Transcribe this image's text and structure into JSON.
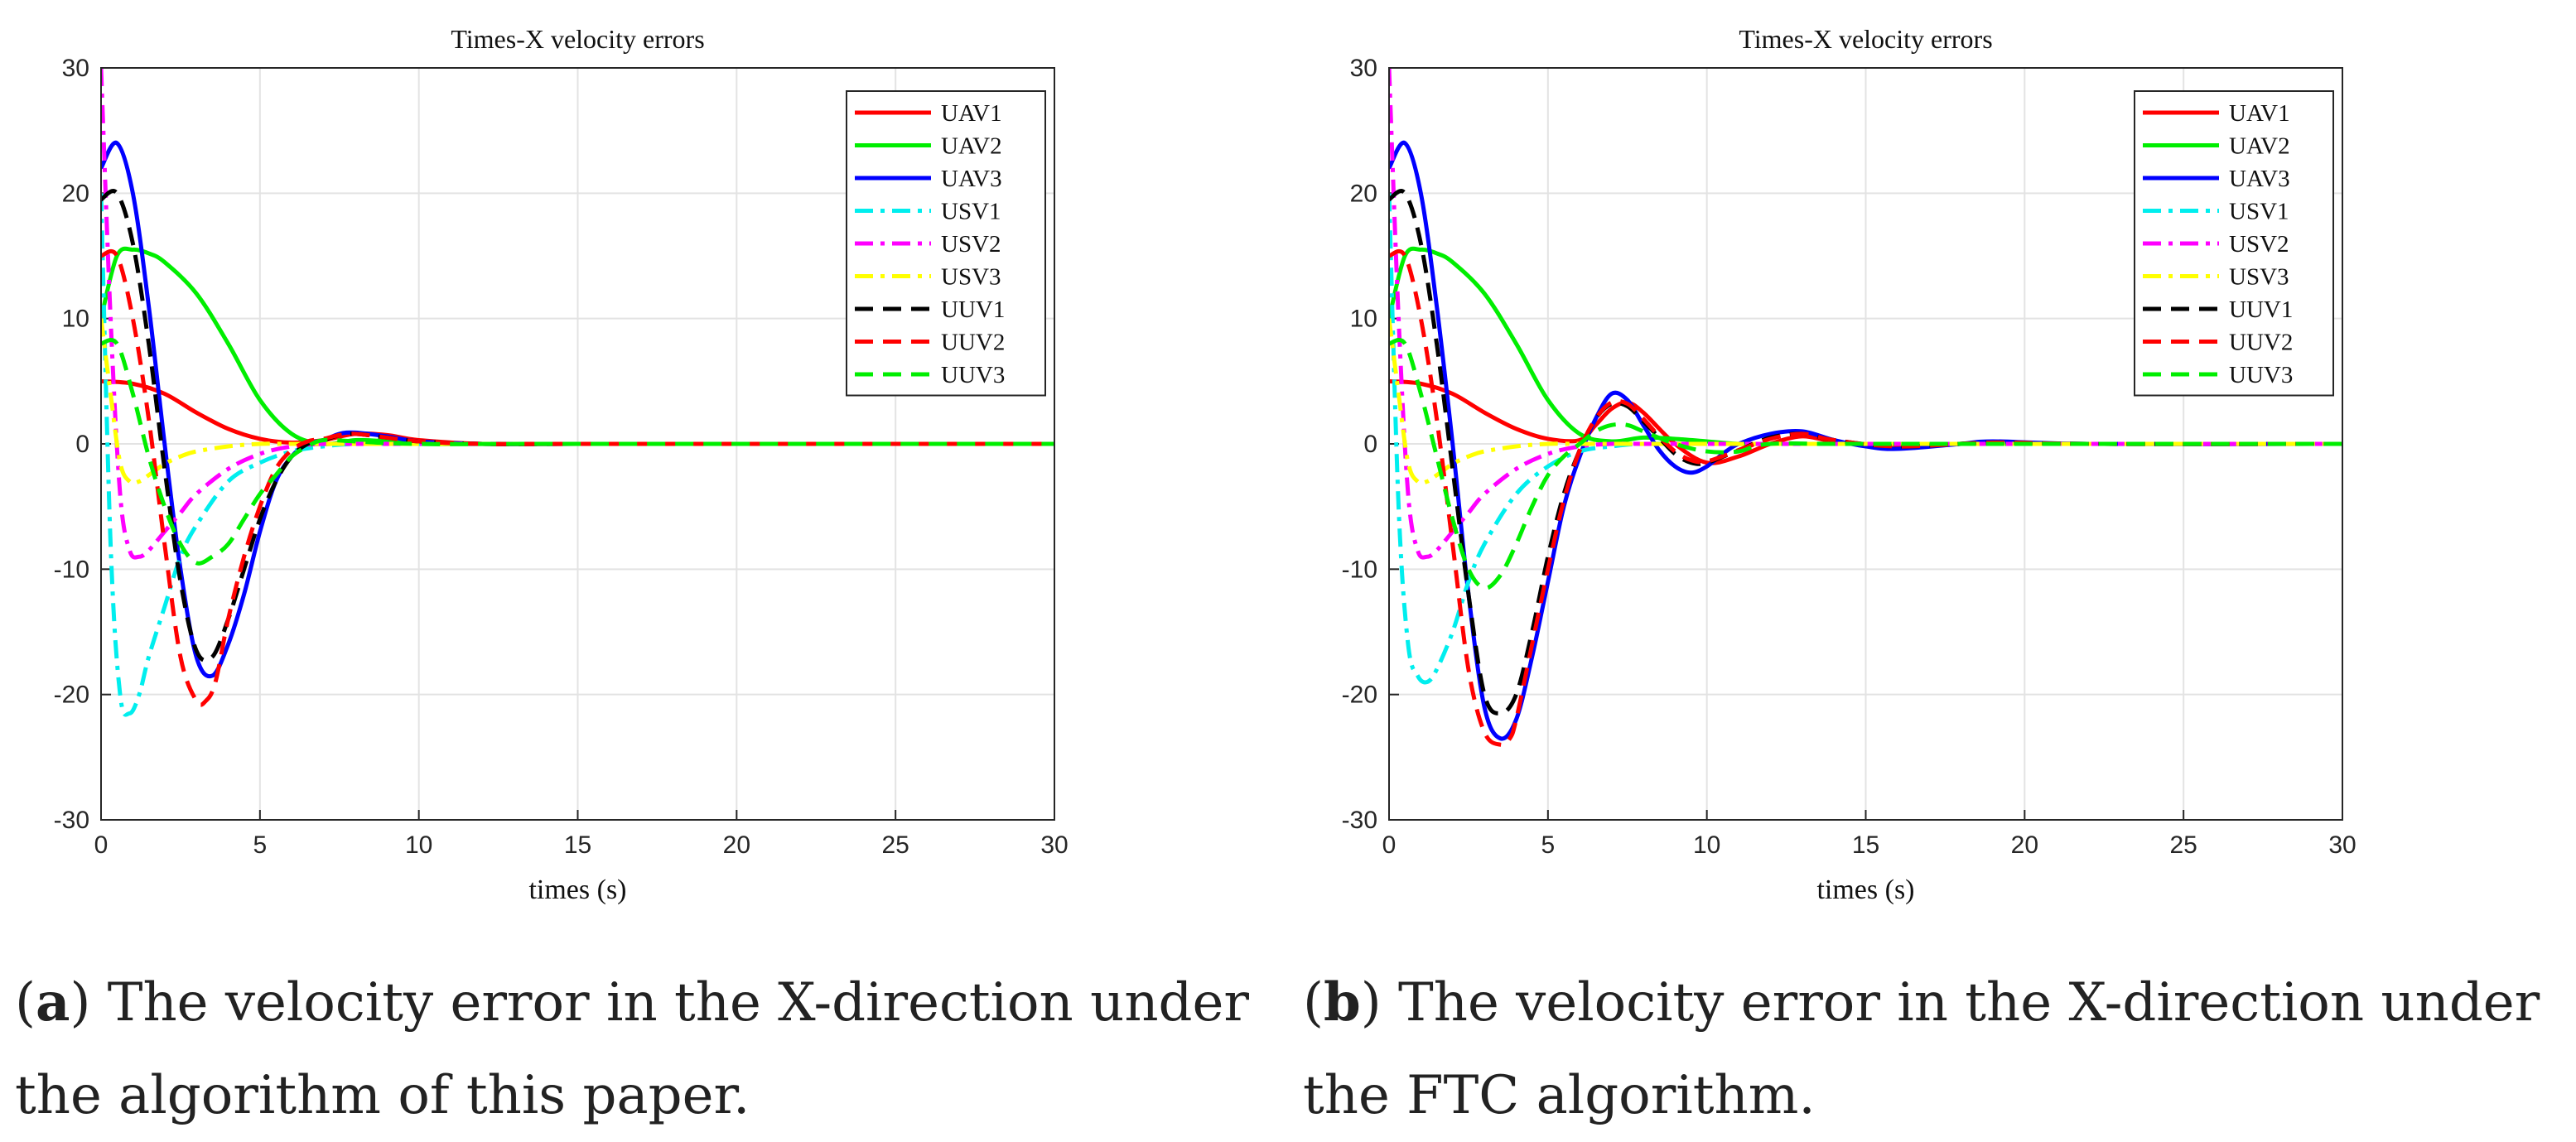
{
  "chart_data": [
    {
      "type": "line",
      "title": "Times-X velocity errors",
      "xlabel": "times (s)",
      "ylabel": "",
      "xlim": [
        0,
        30
      ],
      "ylim": [
        -30,
        30
      ],
      "xticks": [
        "0",
        "5",
        "10",
        "15",
        "20",
        "25",
        "30"
      ],
      "yticks": [
        "30",
        "20",
        "10",
        "0",
        "-10",
        "-20",
        "-30"
      ],
      "grid": true,
      "legend_position": "top-right",
      "caption": {
        "letter": "a",
        "text": "The velocity error in the X-direction under the algorithm of this paper."
      },
      "series": [
        {
          "name": "UAV1",
          "color": "#ff0000",
          "style": "solid",
          "x": [
            0,
            1,
            2,
            3,
            4,
            5,
            6,
            7,
            8,
            9,
            10,
            12,
            15,
            20,
            30
          ],
          "y": [
            5,
            4.8,
            4,
            2.5,
            1.2,
            0.4,
            0.1,
            0.3,
            0.8,
            0.7,
            0.3,
            0,
            0,
            0,
            0
          ]
        },
        {
          "name": "UAV2",
          "color": "#00ee00",
          "style": "solid",
          "x": [
            0,
            0.5,
            1,
            1.5,
            2,
            3,
            4,
            5,
            6,
            7,
            8,
            9,
            10,
            12,
            15,
            20,
            30
          ],
          "y": [
            10,
            15,
            15.5,
            15.2,
            14.5,
            12,
            8,
            3.5,
            0.8,
            0,
            0.3,
            0.2,
            0,
            0,
            0,
            0,
            0
          ]
        },
        {
          "name": "UAV3",
          "color": "#0000ff",
          "style": "solid",
          "x": [
            0,
            0.5,
            1,
            1.5,
            2,
            2.5,
            3,
            3.5,
            4,
            4.5,
            5,
            5.5,
            6,
            6.5,
            7,
            7.5,
            8,
            9,
            10,
            12,
            15,
            20,
            30
          ],
          "y": [
            22,
            24,
            20,
            11,
            0,
            -10,
            -17,
            -18.5,
            -16,
            -12,
            -7,
            -3,
            -1,
            0,
            0.3,
            0.8,
            0.9,
            0.6,
            0.2,
            0,
            0,
            0,
            0
          ]
        },
        {
          "name": "USV1",
          "color": "#00eeee",
          "style": "dashdot",
          "x": [
            0,
            0.3,
            0.6,
            0.9,
            1.2,
            1.5,
            2,
            2.5,
            3,
            4,
            5,
            6,
            7,
            8,
            10,
            15,
            30
          ],
          "y": [
            20,
            -8,
            -20,
            -21.5,
            -20,
            -17,
            -13,
            -9,
            -6.5,
            -3,
            -1.5,
            -0.6,
            -0.2,
            0,
            0,
            0,
            0
          ]
        },
        {
          "name": "USV2",
          "color": "#ff00ff",
          "style": "dashdot",
          "x": [
            0,
            0.3,
            0.6,
            0.9,
            1.2,
            1.5,
            2,
            2.5,
            3,
            4,
            5,
            6,
            7,
            8,
            10,
            15,
            30
          ],
          "y": [
            30,
            10,
            -4,
            -8.5,
            -9,
            -8.5,
            -7,
            -5.5,
            -4,
            -2,
            -0.8,
            -0.2,
            0,
            0,
            0,
            0,
            0
          ]
        },
        {
          "name": "USV3",
          "color": "#ffff00",
          "style": "dashdot",
          "x": [
            0,
            0.3,
            0.6,
            0.9,
            1.2,
            1.5,
            2,
            2.5,
            3,
            4,
            5,
            6,
            8,
            10,
            15,
            30
          ],
          "y": [
            10,
            4,
            -1.5,
            -3,
            -3,
            -2.5,
            -1.6,
            -1,
            -0.6,
            -0.2,
            0,
            0,
            0,
            0,
            0,
            0
          ]
        },
        {
          "name": "UUV1",
          "color": "#000000",
          "style": "dashed",
          "x": [
            0,
            0.5,
            1,
            1.5,
            2,
            2.5,
            3,
            3.5,
            4,
            4.5,
            5,
            5.5,
            6,
            6.5,
            7,
            7.5,
            8,
            9,
            10,
            12,
            15,
            20,
            30
          ],
          "y": [
            19.5,
            20,
            16,
            8,
            -2,
            -11,
            -16.5,
            -17,
            -14,
            -10,
            -6,
            -3,
            -1,
            0,
            0.3,
            0.7,
            0.8,
            0.5,
            0.2,
            0,
            0,
            0,
            0
          ]
        },
        {
          "name": "UUV2",
          "color": "#ff0000",
          "style": "dashed",
          "x": [
            0,
            0.5,
            1,
            1.5,
            2,
            2.5,
            3,
            3.3,
            3.6,
            4,
            4.5,
            5,
            5.5,
            6,
            6.5,
            7,
            7.5,
            8,
            9,
            10,
            12,
            15,
            30
          ],
          "y": [
            15,
            15,
            10,
            2,
            -8,
            -17,
            -20.5,
            -20.5,
            -19,
            -14,
            -9,
            -5,
            -2,
            -0.5,
            0.2,
            0.4,
            0.7,
            0.8,
            0.5,
            0.2,
            0,
            0,
            0
          ]
        },
        {
          "name": "UUV3",
          "color": "#00ee00",
          "style": "dashed",
          "x": [
            0,
            0.5,
            1,
            1.5,
            2,
            2.5,
            3,
            3.5,
            4,
            4.5,
            5,
            5.5,
            6,
            6.5,
            7,
            8,
            10,
            15,
            30
          ],
          "y": [
            8,
            8,
            4,
            -1,
            -5,
            -8,
            -9.5,
            -9,
            -8,
            -6,
            -4,
            -2.5,
            -1,
            -0.2,
            0.3,
            0.2,
            0,
            0,
            0
          ]
        }
      ]
    },
    {
      "type": "line",
      "title": "Times-X velocity errors",
      "xlabel": "times (s)",
      "ylabel": "",
      "xlim": [
        0,
        30
      ],
      "ylim": [
        -30,
        30
      ],
      "xticks": [
        "0",
        "5",
        "10",
        "15",
        "20",
        "25",
        "30"
      ],
      "yticks": [
        "30",
        "20",
        "10",
        "0",
        "-10",
        "-20",
        "-30"
      ],
      "grid": true,
      "legend_position": "top-right",
      "caption": {
        "letter": "b",
        "text": "The velocity error in the X-direction under the FTC algorithm."
      },
      "series": [
        {
          "name": "UAV1",
          "color": "#ff0000",
          "style": "solid",
          "x": [
            0,
            1,
            2,
            3,
            4,
            5,
            6,
            6.5,
            7,
            7.5,
            8,
            9,
            10,
            11,
            12,
            13,
            14,
            16,
            19,
            22,
            30
          ],
          "y": [
            5,
            4.8,
            4,
            2.5,
            1.2,
            0.4,
            0.3,
            1.5,
            2.8,
            3.3,
            2.5,
            0,
            -1.5,
            -1,
            0,
            0.6,
            0.2,
            -0.2,
            0.1,
            0,
            0
          ]
        },
        {
          "name": "UAV2",
          "color": "#00ee00",
          "style": "solid",
          "x": [
            0,
            0.5,
            1,
            1.5,
            2,
            3,
            4,
            5,
            6,
            7,
            8,
            9,
            10,
            11,
            12,
            15,
            20,
            30
          ],
          "y": [
            10,
            15,
            15.5,
            15.2,
            14.5,
            12,
            8,
            3.5,
            0.8,
            0.2,
            0.5,
            0.4,
            0.2,
            0,
            0,
            0,
            0,
            0
          ]
        },
        {
          "name": "UAV3",
          "color": "#0000ff",
          "style": "solid",
          "x": [
            0,
            0.5,
            1,
            1.5,
            2,
            2.5,
            3,
            3.5,
            4,
            4.5,
            5,
            5.5,
            6,
            6.5,
            7,
            7.5,
            8,
            8.5,
            9,
            9.5,
            10,
            10.5,
            11,
            12,
            13,
            14,
            15,
            16,
            18,
            19,
            22,
            30
          ],
          "y": [
            22,
            24,
            20,
            11,
            0,
            -12,
            -21,
            -23.5,
            -22,
            -17,
            -11,
            -5,
            -1,
            2,
            4,
            3.5,
            1.5,
            -0.5,
            -1.8,
            -2.3,
            -1.8,
            -0.8,
            0,
            0.8,
            1,
            0.3,
            -0.2,
            -0.4,
            0,
            0.2,
            0,
            0
          ]
        },
        {
          "name": "USV1",
          "color": "#00eeee",
          "style": "dashdot",
          "x": [
            0,
            0.3,
            0.6,
            0.9,
            1.2,
            1.5,
            2,
            2.5,
            3,
            4,
            5,
            6,
            7,
            8,
            10,
            15,
            30
          ],
          "y": [
            20,
            -5,
            -16,
            -18.5,
            -19,
            -18,
            -15,
            -11,
            -8,
            -4,
            -1.8,
            -0.6,
            -0.2,
            0,
            0,
            0,
            0
          ]
        },
        {
          "name": "USV2",
          "color": "#ff00ff",
          "style": "dashdot",
          "x": [
            0,
            0.3,
            0.6,
            0.9,
            1.2,
            1.5,
            2,
            2.5,
            3,
            4,
            5,
            6,
            7,
            8,
            10,
            15,
            30
          ],
          "y": [
            30,
            10,
            -4,
            -8.5,
            -9,
            -8.5,
            -7,
            -5.5,
            -4,
            -2,
            -0.8,
            -0.2,
            0,
            0,
            0,
            0,
            0
          ]
        },
        {
          "name": "USV3",
          "color": "#ffff00",
          "style": "dashdot",
          "x": [
            0,
            0.3,
            0.6,
            0.9,
            1.2,
            1.5,
            2,
            2.5,
            3,
            4,
            5,
            6,
            8,
            10,
            15,
            30
          ],
          "y": [
            10,
            4,
            -1.5,
            -3,
            -3,
            -2.5,
            -1.6,
            -1,
            -0.6,
            -0.2,
            0,
            0,
            0,
            0,
            0,
            0
          ]
        },
        {
          "name": "UUV1",
          "color": "#000000",
          "style": "dashed",
          "x": [
            0,
            0.5,
            1,
            1.5,
            2,
            2.5,
            3,
            3.5,
            4,
            4.5,
            5,
            5.5,
            6,
            6.5,
            7,
            7.5,
            8,
            8.5,
            9,
            9.5,
            10,
            11,
            12,
            13,
            14,
            16,
            19,
            22,
            30
          ],
          "y": [
            19.5,
            20,
            16,
            8,
            -2,
            -12,
            -20,
            -21.5,
            -20,
            -15,
            -9,
            -4,
            -0.5,
            2,
            3.2,
            3,
            1.8,
            0.5,
            -0.8,
            -1.5,
            -1.5,
            -0.5,
            0.5,
            0.8,
            0.3,
            -0.2,
            0.1,
            0,
            0
          ]
        },
        {
          "name": "UUV2",
          "color": "#ff0000",
          "style": "dashed",
          "x": [
            0,
            0.5,
            1,
            1.5,
            2,
            2.5,
            3,
            3.5,
            3.8,
            4,
            4.5,
            5,
            5.5,
            6,
            6.5,
            7,
            7.5,
            8,
            8.5,
            9,
            9.5,
            10,
            11,
            12,
            13,
            14,
            16,
            19,
            22,
            30
          ],
          "y": [
            15,
            15,
            10,
            2,
            -8,
            -18,
            -23,
            -24,
            -23.5,
            -22,
            -16,
            -10,
            -4.5,
            -0.5,
            2,
            3.3,
            3.2,
            2,
            0.6,
            -0.6,
            -1.3,
            -1.4,
            -0.5,
            0.4,
            0.8,
            0.3,
            -0.2,
            0.1,
            0,
            0
          ]
        },
        {
          "name": "UUV3",
          "color": "#00ee00",
          "style": "dashed",
          "x": [
            0,
            0.5,
            1,
            1.5,
            2,
            2.5,
            3,
            3.5,
            4,
            4.5,
            5,
            5.5,
            6,
            6.5,
            7,
            7.5,
            8,
            9,
            10,
            11,
            12,
            15,
            30
          ],
          "y": [
            8,
            8,
            4,
            -1,
            -6,
            -10,
            -11.5,
            -10.5,
            -8,
            -5,
            -2.5,
            -1,
            0,
            1,
            1.5,
            1.5,
            1,
            0,
            -0.6,
            -0.6,
            0,
            0,
            0
          ]
        }
      ]
    }
  ]
}
